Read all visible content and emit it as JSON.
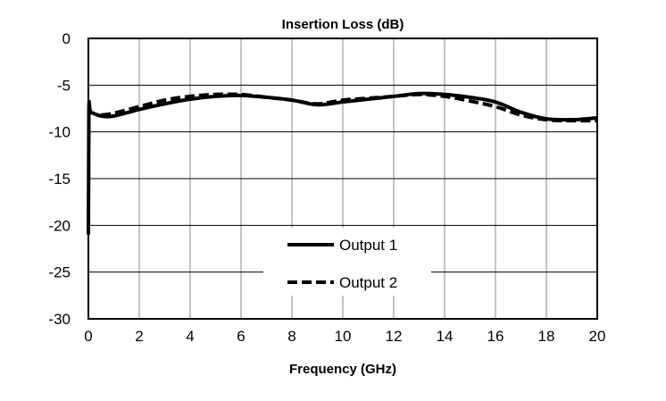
{
  "chart_data": {
    "type": "line",
    "title": "Insertion Loss (dB)",
    "xlabel": "Frequency (GHz)",
    "ylabel": "",
    "xlim": [
      0,
      20
    ],
    "ylim": [
      -30,
      0
    ],
    "xticks": [
      0,
      2,
      4,
      6,
      8,
      10,
      12,
      14,
      16,
      18,
      20
    ],
    "yticks": [
      0,
      -5,
      -10,
      -15,
      -20,
      -25,
      -30
    ],
    "grid": true,
    "legend_position": "bottom-center",
    "series": [
      {
        "name": "Output 1",
        "style": "solid",
        "x": [
          0,
          0.02,
          0.1,
          0.5,
          1,
          2,
          3,
          4,
          5,
          6,
          7,
          8,
          9,
          10,
          11,
          12,
          13,
          14,
          15,
          16,
          17,
          18,
          19,
          20
        ],
        "y": [
          -21,
          -7.7,
          -7.9,
          -8.3,
          -8.3,
          -7.6,
          -7.0,
          -6.5,
          -6.2,
          -6.1,
          -6.3,
          -6.6,
          -7.1,
          -6.8,
          -6.5,
          -6.2,
          -5.9,
          -6.0,
          -6.3,
          -6.8,
          -7.9,
          -8.6,
          -8.7,
          -8.5
        ]
      },
      {
        "name": "Output 2",
        "style": "dashed",
        "x": [
          0.5,
          1,
          2,
          3,
          4,
          5,
          6,
          7,
          8,
          9,
          10,
          11,
          12,
          13,
          14,
          15,
          16,
          17,
          18,
          19,
          20
        ],
        "y": [
          -8.2,
          -8.0,
          -7.3,
          -6.6,
          -6.2,
          -6.0,
          -6.0,
          -6.3,
          -6.6,
          -7.0,
          -6.6,
          -6.4,
          -6.2,
          -6.0,
          -6.2,
          -6.7,
          -7.3,
          -8.2,
          -8.7,
          -8.8,
          -8.8
        ]
      }
    ]
  }
}
